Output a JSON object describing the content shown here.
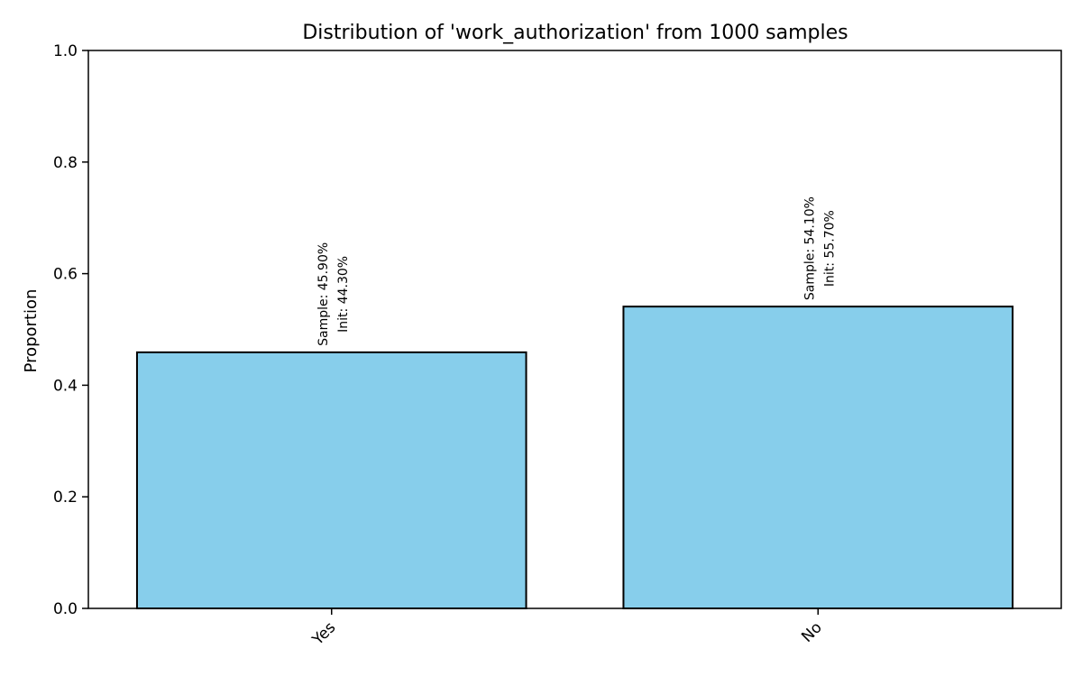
{
  "chart_data": {
    "type": "bar",
    "title": "Distribution of 'work_authorization' from 1000 samples",
    "xlabel": "",
    "ylabel": "Proportion",
    "categories": [
      "Yes",
      "No"
    ],
    "values": [
      0.459,
      0.541
    ],
    "annotations": [
      {
        "line1": "Sample: 45.90%",
        "line2": "Init: 44.30%"
      },
      {
        "line1": "Sample: 54.10%",
        "line2": "Init: 55.70%"
      }
    ],
    "ylim": [
      0,
      1.0
    ],
    "yticks": [
      "0.0",
      "0.2",
      "0.4",
      "0.6",
      "0.8",
      "1.0"
    ],
    "ytick_values": [
      0,
      0.2,
      0.4,
      0.6,
      0.8,
      1.0
    ],
    "grid": false,
    "colors": {
      "bar_fill": "#87CEEB",
      "bar_edge": "#000000",
      "axis": "#000000"
    }
  }
}
